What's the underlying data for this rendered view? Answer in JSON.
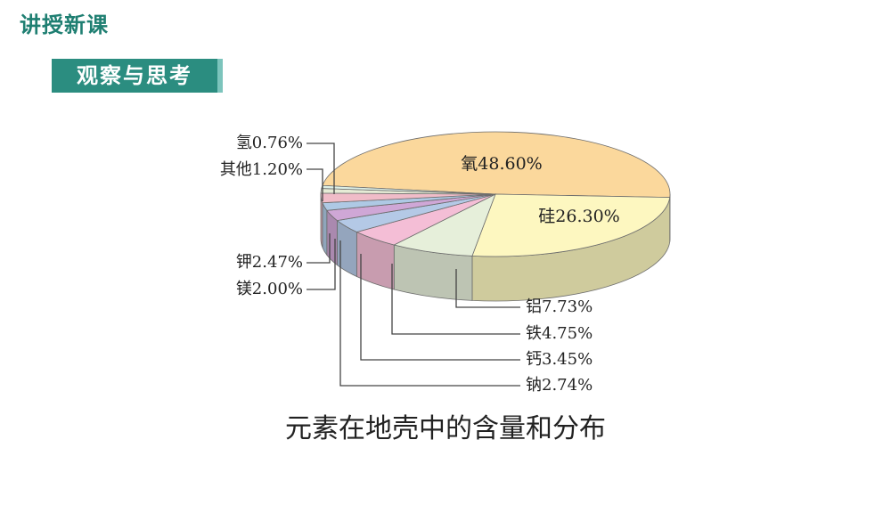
{
  "header": {
    "title": "讲授新课"
  },
  "section": {
    "label": "观察与思考"
  },
  "chart_data": {
    "type": "pie",
    "title": "元素在地壳中的含量和分布",
    "slices": [
      {
        "label": "氧48.60%",
        "name": "氧",
        "value": 48.6,
        "color": "#fbd89c"
      },
      {
        "label": "硅26.30%",
        "name": "硅",
        "value": 26.3,
        "color": "#fdf7c0"
      },
      {
        "label": "铝7.73%",
        "name": "铝",
        "value": 7.73,
        "color": "#e6efda"
      },
      {
        "label": "铁4.75%",
        "name": "铁",
        "value": 4.75,
        "color": "#f4bed6"
      },
      {
        "label": "钙3.45%",
        "name": "钙",
        "value": 3.45,
        "color": "#b4c9e6"
      },
      {
        "label": "钠2.74%",
        "name": "钠",
        "value": 2.74,
        "color": "#cfa7d6"
      },
      {
        "label": "镁2.00%",
        "name": "镁",
        "value": 2.0,
        "color": "#aec9e4"
      },
      {
        "label": "钾2.47%",
        "name": "钾",
        "value": 2.47,
        "color": "#f0bcc8"
      },
      {
        "label": "其他1.20%",
        "name": "其他",
        "value": 1.2,
        "color": "#e6ecd6"
      },
      {
        "label": "氢0.76%",
        "name": "氢",
        "value": 0.76,
        "color": "#dcefe6"
      }
    ]
  }
}
